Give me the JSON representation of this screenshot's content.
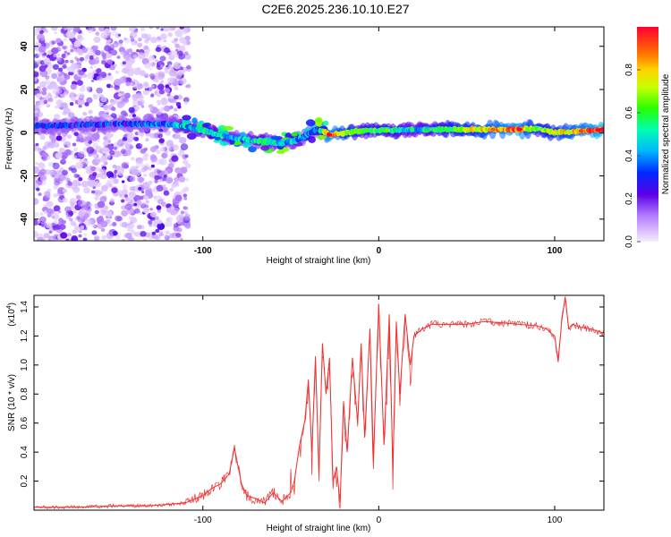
{
  "page": {
    "title": "C2E6.2025.236.10.10.E27"
  },
  "chart_data": [
    {
      "type": "heatmap",
      "title": "C2E6.2025.236.10.10.E27",
      "xlabel": "Height of straight line (km)",
      "ylabel": "Frequency (Hz)",
      "xlim": [
        -196,
        128
      ],
      "ylim": [
        -50,
        49
      ],
      "xticks": [
        -100,
        0,
        100
      ],
      "yticks": [
        -40,
        -20,
        0,
        20,
        40
      ],
      "colorbar": {
        "label": "Normalized spectral amplitude",
        "range": [
          0,
          1
        ],
        "ticks": [
          "0.0",
          "0.2",
          "0.4",
          "0.6",
          "0.8"
        ],
        "tick_values": [
          0,
          0.2,
          0.4,
          0.6,
          0.8
        ]
      },
      "ridge": [
        {
          "x": -196,
          "f": 3,
          "a": 0.25
        },
        {
          "x": -150,
          "f": 4,
          "a": 0.3
        },
        {
          "x": -120,
          "f": 4,
          "a": 0.35
        },
        {
          "x": -110,
          "f": 3,
          "a": 0.45
        },
        {
          "x": -95,
          "f": 0,
          "a": 0.5
        },
        {
          "x": -80,
          "f": -3,
          "a": 0.4
        },
        {
          "x": -65,
          "f": -4,
          "a": 0.5
        },
        {
          "x": -55,
          "f": -5,
          "a": 0.45
        },
        {
          "x": -45,
          "f": -3,
          "a": 0.4
        },
        {
          "x": -35,
          "f": 2,
          "a": 0.35
        },
        {
          "x": -28,
          "f": -1,
          "a": 0.9
        },
        {
          "x": -10,
          "f": 1,
          "a": 0.55
        },
        {
          "x": 0,
          "f": 1,
          "a": 0.6
        },
        {
          "x": 20,
          "f": 1.5,
          "a": 0.45
        },
        {
          "x": 50,
          "f": 1.5,
          "a": 0.7
        },
        {
          "x": 80,
          "f": 1.5,
          "a": 0.9
        },
        {
          "x": 90,
          "f": 2,
          "a": 0.6
        },
        {
          "x": 100,
          "f": 0,
          "a": 0.7
        },
        {
          "x": 128,
          "f": 1.5,
          "a": 0.95
        }
      ]
    },
    {
      "type": "line",
      "xlabel": "Height of straight line (km)",
      "ylabel": "SNR (10 * v/v)",
      "yscale_label": "(x10",
      "yscale_exp": "4",
      "yscale_close": ")",
      "xlim": [
        -196,
        128
      ],
      "ylim": [
        0,
        1.48
      ],
      "xticks": [
        -100,
        0,
        100
      ],
      "yticks": [
        0.2,
        0.4,
        0.6,
        0.8,
        1.0,
        1.2,
        1.4
      ],
      "ytick_labels": [
        "0.2",
        "0.4",
        "0.6",
        "0.8",
        "1.0",
        "1.2",
        "1.4"
      ],
      "series": [
        {
          "name": "SNR",
          "color": "#ee3333",
          "x": [
            -196,
            -170,
            -150,
            -130,
            -120,
            -110,
            -100,
            -95,
            -90,
            -85,
            -82,
            -80,
            -78,
            -75,
            -70,
            -65,
            -60,
            -55,
            -50,
            -48,
            -45,
            -42,
            -40,
            -38,
            -36,
            -34,
            -32,
            -30,
            -28,
            -26,
            -24,
            -22,
            -20,
            -18,
            -15,
            -12,
            -10,
            -8,
            -5,
            -3,
            0,
            3,
            6,
            8,
            10,
            12,
            15,
            18,
            20,
            25,
            30,
            40,
            50,
            60,
            70,
            80,
            90,
            95,
            100,
            102,
            104,
            106,
            108,
            110,
            115,
            120,
            128
          ],
          "y": [
            0.02,
            0.02,
            0.03,
            0.03,
            0.04,
            0.05,
            0.1,
            0.15,
            0.18,
            0.25,
            0.43,
            0.3,
            0.18,
            0.1,
            0.08,
            0.05,
            0.12,
            0.06,
            0.12,
            0.2,
            0.45,
            0.62,
            0.9,
            0.4,
            1.06,
            0.25,
            1.15,
            0.8,
            1.05,
            0.2,
            0.3,
            0.05,
            0.75,
            0.4,
            1.05,
            0.6,
            1.15,
            0.5,
            1.25,
            0.35,
            1.42,
            0.45,
            1.35,
            0.28,
            1.3,
            0.8,
            1.35,
            1.0,
            1.2,
            1.25,
            1.28,
            1.28,
            1.28,
            1.3,
            1.29,
            1.28,
            1.27,
            1.25,
            1.2,
            1.02,
            1.3,
            1.47,
            1.25,
            1.28,
            1.26,
            1.25,
            1.22
          ]
        }
      ]
    }
  ]
}
